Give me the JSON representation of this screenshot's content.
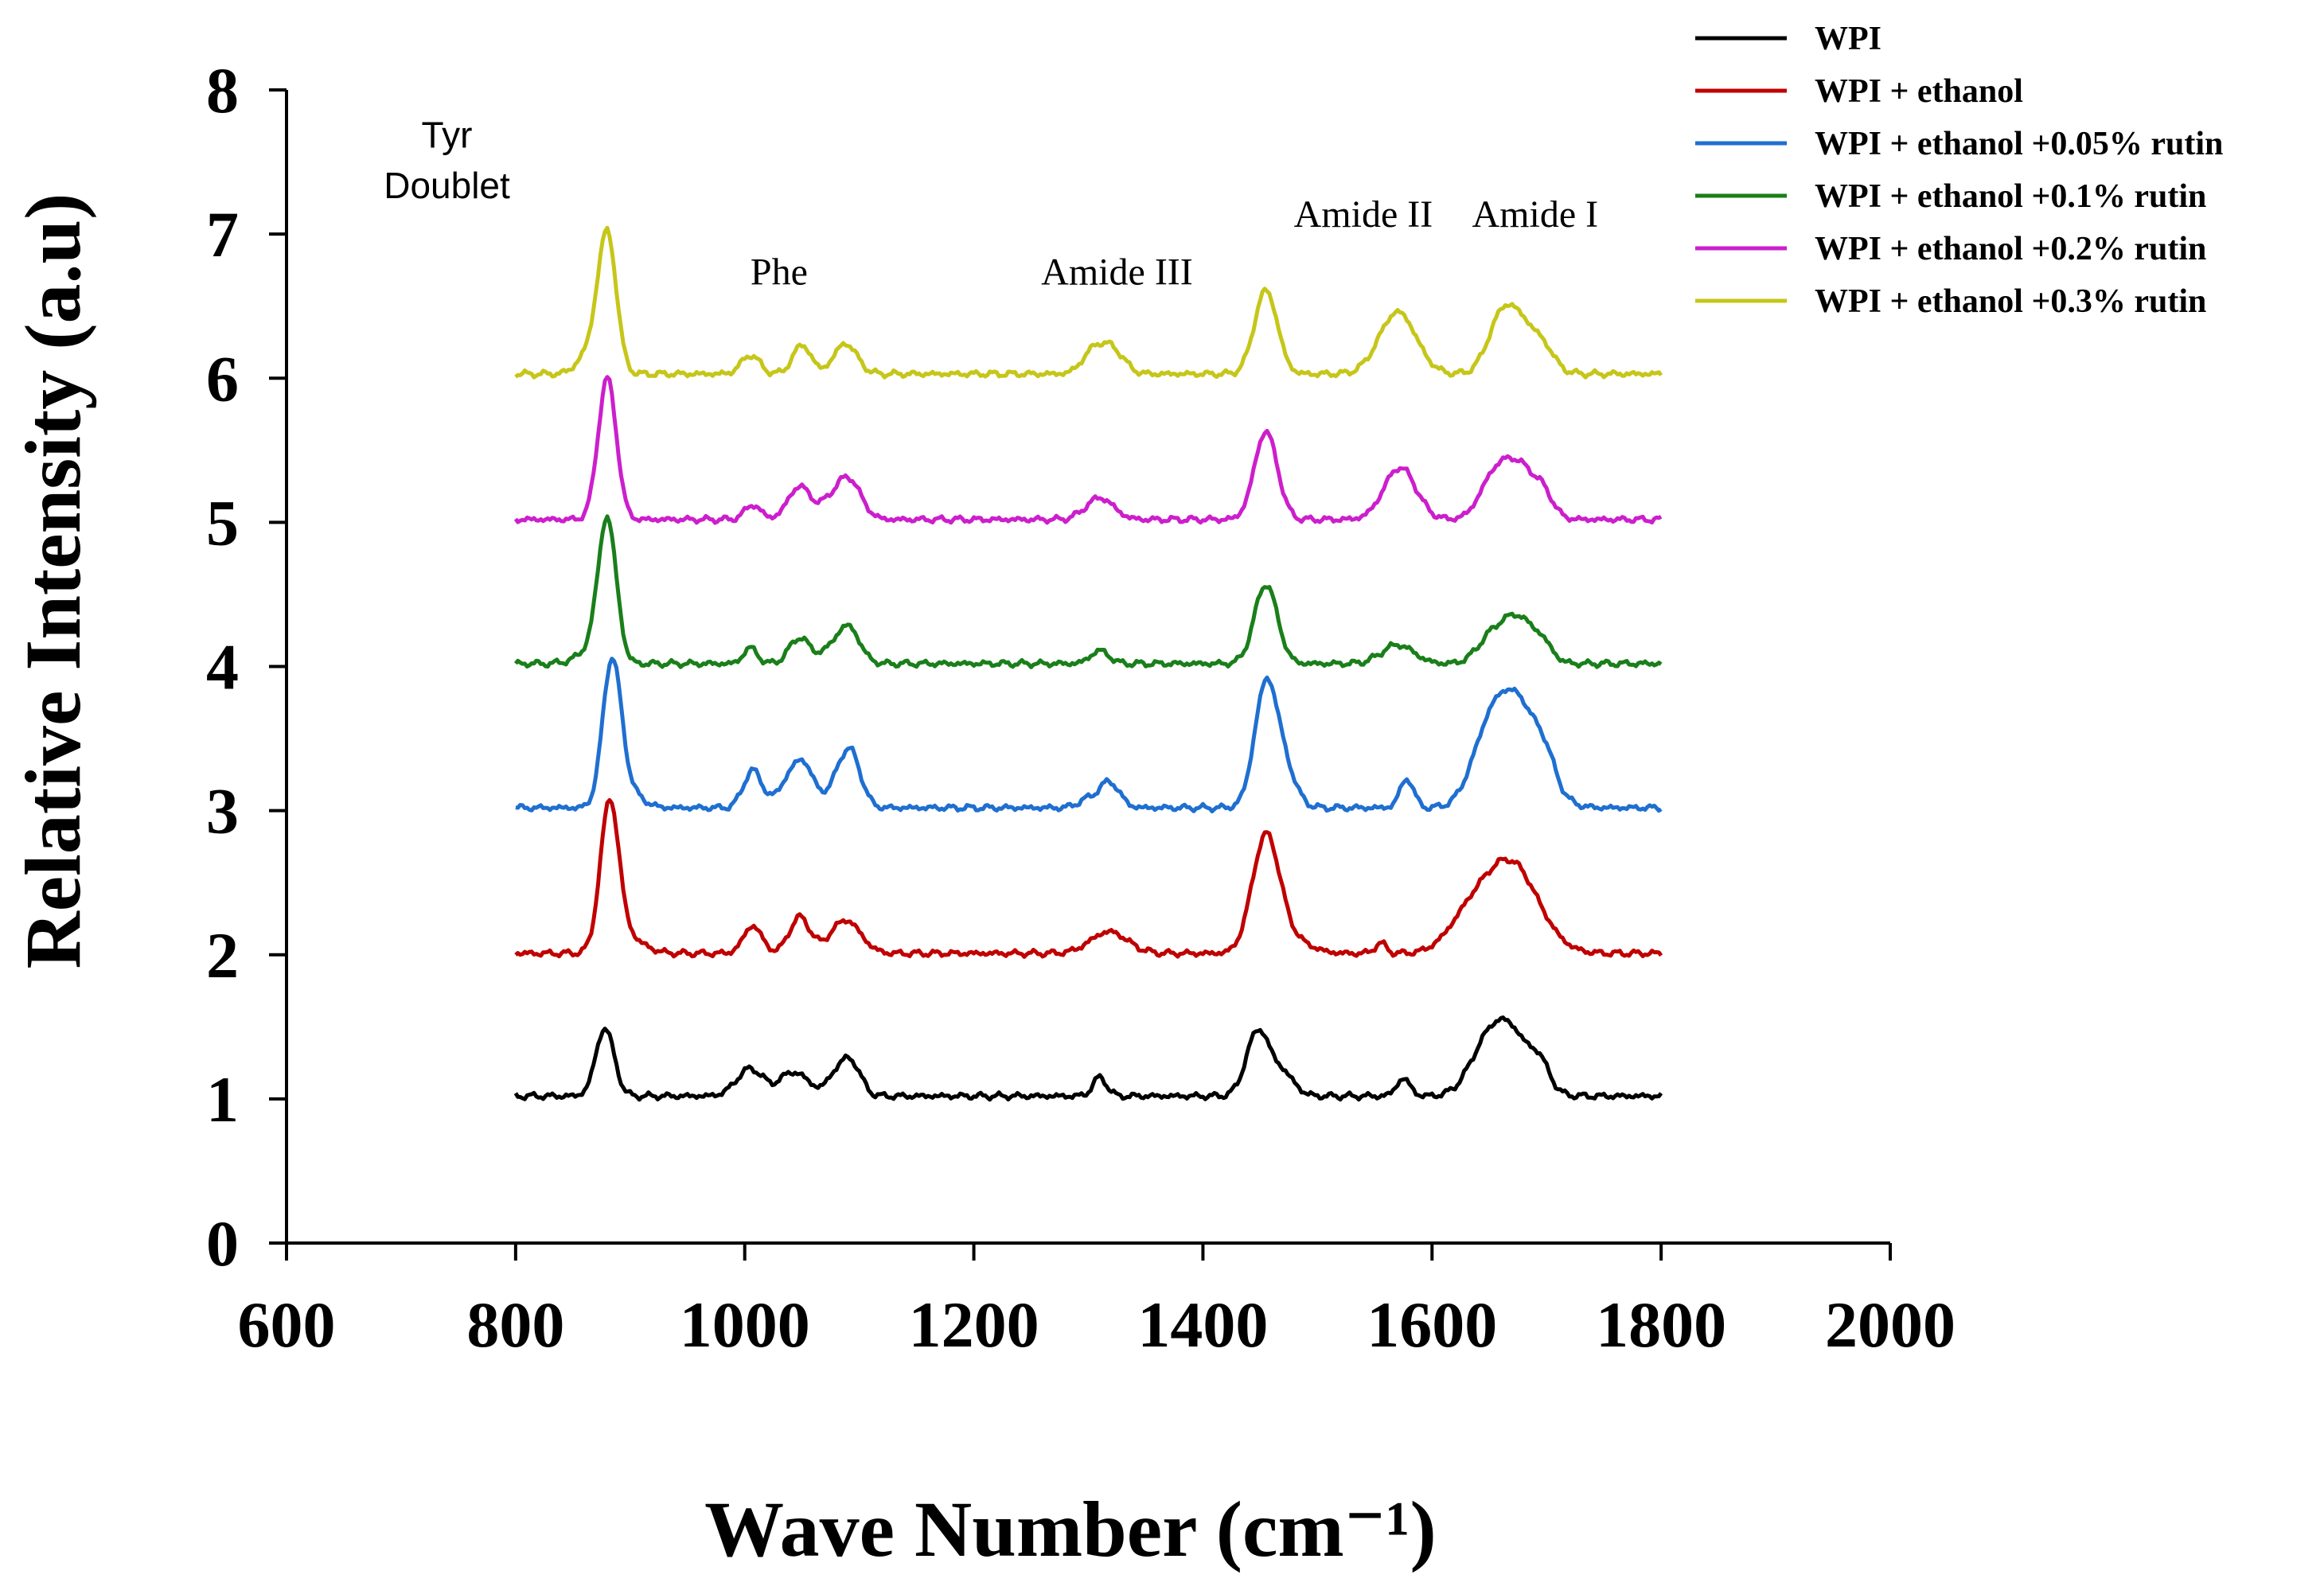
{
  "chart_data": {
    "type": "line",
    "title": "",
    "xlabel": "Wave Number  (cm⁻¹)",
    "ylabel": "Relative Intensity  (a.u)",
    "xlim": [
      600,
      2000
    ],
    "ylim": [
      0,
      8
    ],
    "x_ticks": [
      "600",
      "800",
      "1000",
      "1200",
      "1400",
      "1600",
      "1800",
      "2000"
    ],
    "y_ticks": [
      "0",
      "1",
      "2",
      "3",
      "4",
      "5",
      "6",
      "7",
      "8"
    ],
    "grid": false,
    "legend_position": "top-right",
    "annotations": [
      {
        "text": "Tyr",
        "x": 740,
        "y": 7.6,
        "style": "sans"
      },
      {
        "text": "Doublet",
        "x": 740,
        "y": 7.25,
        "style": "sans"
      },
      {
        "text": "Phe",
        "x": 1030,
        "y": 6.65,
        "style": "serif"
      },
      {
        "text": "Amide III",
        "x": 1325,
        "y": 6.65,
        "style": "serif"
      },
      {
        "text": "Amide II",
        "x": 1540,
        "y": 7.05,
        "style": "serif"
      },
      {
        "text": "Amide I",
        "x": 1690,
        "y": 7.05,
        "style": "serif"
      }
    ],
    "series": [
      {
        "name": "WPI",
        "color": "#000000",
        "baseline": 1.02,
        "peaks": [
          [
            878,
            0.47,
            8
          ],
          [
            1005,
            0.19,
            12
          ],
          [
            1035,
            0.08,
            8
          ],
          [
            1048,
            0.13,
            10
          ],
          [
            1083,
            0.18,
            10
          ],
          [
            1095,
            0.15,
            8
          ],
          [
            1310,
            0.13,
            6
          ],
          [
            1448,
            0.45,
            10
          ],
          [
            1470,
            0.15,
            10
          ],
          [
            1575,
            0.12,
            6
          ],
          [
            1645,
            0.22,
            15
          ],
          [
            1668,
            0.44,
            18
          ],
          [
            1695,
            0.14,
            8
          ]
        ]
      },
      {
        "name": "WPI + ethanol",
        "color": "#c00000",
        "baseline": 2.01,
        "peaks": [
          [
            882,
            0.99,
            8
          ],
          [
            895,
            0.12,
            15
          ],
          [
            1007,
            0.19,
            8
          ],
          [
            1048,
            0.25,
            9
          ],
          [
            1088,
            0.23,
            13
          ],
          [
            1318,
            0.15,
            16
          ],
          [
            1455,
            0.81,
            12
          ],
          [
            1480,
            0.08,
            15
          ],
          [
            1555,
            0.07,
            5
          ],
          [
            1630,
            0.18,
            18
          ],
          [
            1668,
            0.63,
            24
          ]
        ]
      },
      {
        "name": "WPI + ethanol +0.05% rutin",
        "color": "#1f6fd0",
        "baseline": 3.02,
        "peaks": [
          [
            884,
            0.98,
            8
          ],
          [
            897,
            0.12,
            12
          ],
          [
            1007,
            0.26,
            8
          ],
          [
            1038,
            0.16,
            10
          ],
          [
            1052,
            0.26,
            9
          ],
          [
            1082,
            0.15,
            10
          ],
          [
            1093,
            0.32,
            9
          ],
          [
            1318,
            0.18,
            9
          ],
          [
            1298,
            0.05,
            8
          ],
          [
            1455,
            0.84,
            10
          ],
          [
            1472,
            0.22,
            10
          ],
          [
            1578,
            0.2,
            6
          ],
          [
            1648,
            0.35,
            15
          ],
          [
            1675,
            0.72,
            20
          ],
          [
            1700,
            0.12,
            8
          ]
        ]
      },
      {
        "name": "WPI + ethanol +0.1% rutin",
        "color": "#1a7f1a",
        "baseline": 4.02,
        "peaks": [
          [
            880,
            0.98,
            8
          ],
          [
            865,
            0.08,
            12
          ],
          [
            1005,
            0.11,
            6
          ],
          [
            1048,
            0.18,
            9
          ],
          [
            1090,
            0.26,
            10
          ],
          [
            1072,
            0.06,
            8
          ],
          [
            1310,
            0.09,
            8
          ],
          [
            1455,
            0.55,
            10
          ],
          [
            1570,
            0.13,
            14
          ],
          [
            1650,
            0.14,
            12
          ],
          [
            1675,
            0.32,
            15
          ],
          [
            1698,
            0.08,
            8
          ]
        ]
      },
      {
        "name": "WPI + ethanol +0.2% rutin",
        "color": "#cc1fcc",
        "baseline": 5.02,
        "peaks": [
          [
            880,
            0.98,
            8
          ],
          [
            1007,
            0.1,
            7
          ],
          [
            1048,
            0.23,
            10
          ],
          [
            1090,
            0.29,
            11
          ],
          [
            1072,
            0.07,
            8
          ],
          [
            1310,
            0.15,
            12
          ],
          [
            1455,
            0.61,
            10
          ],
          [
            1572,
            0.36,
            14
          ],
          [
            1652,
            0.2,
            12
          ],
          [
            1675,
            0.38,
            16
          ],
          [
            1698,
            0.1,
            8
          ]
        ]
      },
      {
        "name": "WPI + ethanol +0.3% rutin",
        "color": "#c6c61a",
        "baseline": 6.03,
        "peaks": [
          [
            880,
            0.95,
            8
          ],
          [
            865,
            0.15,
            10
          ],
          [
            1005,
            0.13,
            8
          ],
          [
            1050,
            0.2,
            8
          ],
          [
            1088,
            0.21,
            10
          ],
          [
            1305,
            0.16,
            10
          ],
          [
            1322,
            0.15,
            10
          ],
          [
            1455,
            0.58,
            10
          ],
          [
            1570,
            0.43,
            16
          ],
          [
            1660,
            0.3,
            12
          ],
          [
            1680,
            0.32,
            16
          ],
          [
            1700,
            0.06,
            8
          ]
        ]
      }
    ]
  }
}
